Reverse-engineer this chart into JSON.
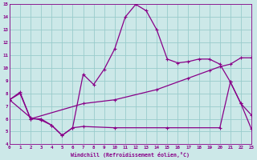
{
  "bg_color": "#cce8e8",
  "line_color": "#880088",
  "grid_color": "#99cccc",
  "xlabel": "Windchill (Refroidissement éolien,°C)",
  "xlabel_color": "#880088",
  "tick_color": "#880088",
  "xlim": [
    0,
    23
  ],
  "ylim": [
    4,
    15
  ],
  "xticks": [
    0,
    1,
    2,
    3,
    4,
    5,
    6,
    7,
    8,
    9,
    10,
    11,
    12,
    13,
    14,
    15,
    16,
    17,
    18,
    19,
    20,
    21,
    22,
    23
  ],
  "yticks": [
    4,
    5,
    6,
    7,
    8,
    9,
    10,
    11,
    12,
    13,
    14,
    15
  ],
  "line1_x": [
    0,
    1,
    2,
    3,
    4,
    5,
    6,
    7,
    8,
    9,
    10,
    11,
    12,
    13,
    14,
    15,
    16,
    17,
    18,
    19,
    20,
    21,
    22,
    23
  ],
  "line1_y": [
    7.5,
    8.1,
    6.0,
    6.0,
    5.5,
    4.7,
    5.3,
    9.5,
    8.7,
    9.9,
    11.5,
    14.0,
    15.0,
    14.5,
    13.0,
    10.7,
    10.4,
    10.5,
    10.7,
    10.7,
    10.3,
    8.9,
    7.2,
    6.3
  ],
  "line2_x": [
    0,
    1,
    2,
    7,
    10,
    14,
    17,
    19,
    20,
    21,
    22,
    23
  ],
  "line2_y": [
    7.5,
    8.0,
    6.0,
    7.2,
    7.5,
    8.3,
    9.2,
    9.8,
    10.1,
    10.3,
    10.8,
    10.8
  ],
  "line3_x": [
    0,
    2,
    3,
    4,
    5,
    6,
    7,
    10,
    15,
    20,
    21,
    22,
    23
  ],
  "line3_y": [
    7.5,
    6.1,
    5.9,
    5.5,
    4.7,
    5.3,
    5.4,
    5.3,
    5.3,
    5.3,
    8.9,
    7.2,
    5.2
  ]
}
